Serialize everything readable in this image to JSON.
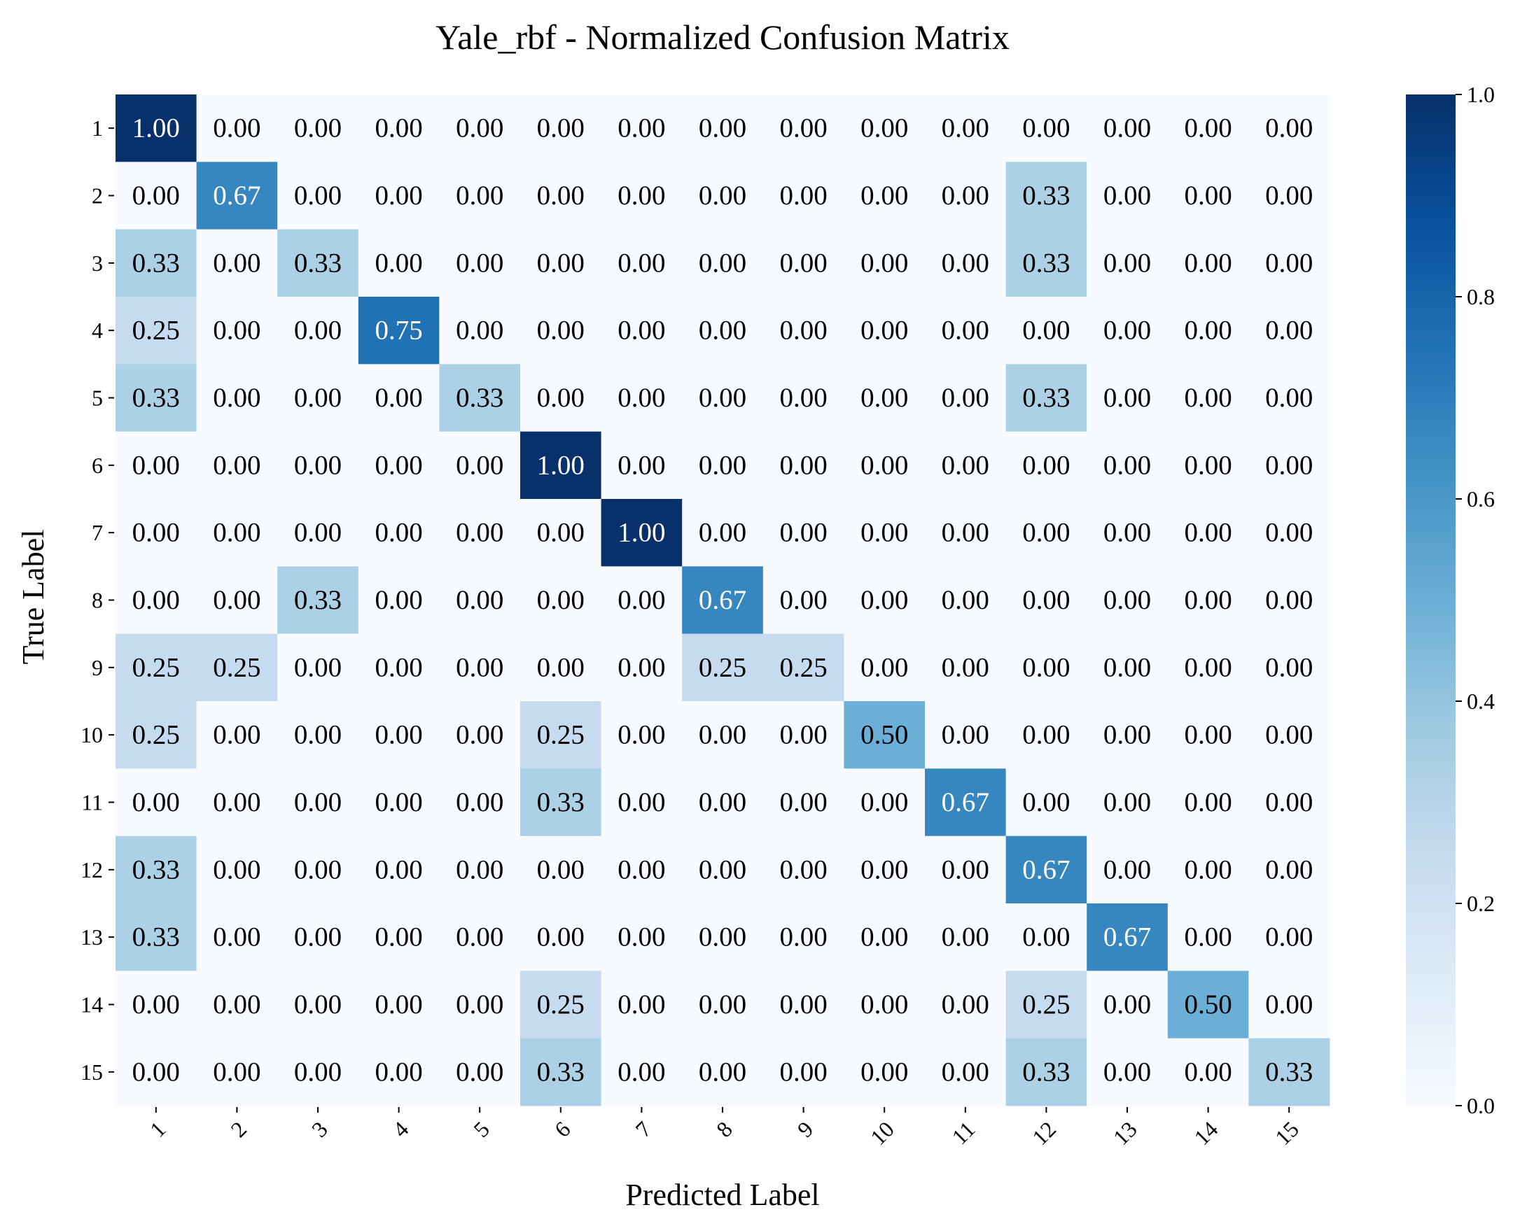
{
  "chart_data": {
    "type": "heatmap",
    "title": "Yale_rbf - Normalized Confusion Matrix",
    "xlabel": "Predicted Label",
    "ylabel": "True Label",
    "x_categories": [
      "1",
      "2",
      "3",
      "4",
      "5",
      "6",
      "7",
      "8",
      "9",
      "10",
      "11",
      "12",
      "13",
      "14",
      "15"
    ],
    "y_categories": [
      "1",
      "2",
      "3",
      "4",
      "5",
      "6",
      "7",
      "8",
      "9",
      "10",
      "11",
      "12",
      "13",
      "14",
      "15"
    ],
    "values": [
      [
        1.0,
        0.0,
        0.0,
        0.0,
        0.0,
        0.0,
        0.0,
        0.0,
        0.0,
        0.0,
        0.0,
        0.0,
        0.0,
        0.0,
        0.0
      ],
      [
        0.0,
        0.67,
        0.0,
        0.0,
        0.0,
        0.0,
        0.0,
        0.0,
        0.0,
        0.0,
        0.0,
        0.33,
        0.0,
        0.0,
        0.0
      ],
      [
        0.33,
        0.0,
        0.33,
        0.0,
        0.0,
        0.0,
        0.0,
        0.0,
        0.0,
        0.0,
        0.0,
        0.33,
        0.0,
        0.0,
        0.0
      ],
      [
        0.25,
        0.0,
        0.0,
        0.75,
        0.0,
        0.0,
        0.0,
        0.0,
        0.0,
        0.0,
        0.0,
        0.0,
        0.0,
        0.0,
        0.0
      ],
      [
        0.33,
        0.0,
        0.0,
        0.0,
        0.33,
        0.0,
        0.0,
        0.0,
        0.0,
        0.0,
        0.0,
        0.33,
        0.0,
        0.0,
        0.0
      ],
      [
        0.0,
        0.0,
        0.0,
        0.0,
        0.0,
        1.0,
        0.0,
        0.0,
        0.0,
        0.0,
        0.0,
        0.0,
        0.0,
        0.0,
        0.0
      ],
      [
        0.0,
        0.0,
        0.0,
        0.0,
        0.0,
        0.0,
        1.0,
        0.0,
        0.0,
        0.0,
        0.0,
        0.0,
        0.0,
        0.0,
        0.0
      ],
      [
        0.0,
        0.0,
        0.33,
        0.0,
        0.0,
        0.0,
        0.0,
        0.67,
        0.0,
        0.0,
        0.0,
        0.0,
        0.0,
        0.0,
        0.0
      ],
      [
        0.25,
        0.25,
        0.0,
        0.0,
        0.0,
        0.0,
        0.0,
        0.25,
        0.25,
        0.0,
        0.0,
        0.0,
        0.0,
        0.0,
        0.0
      ],
      [
        0.25,
        0.0,
        0.0,
        0.0,
        0.0,
        0.25,
        0.0,
        0.0,
        0.0,
        0.5,
        0.0,
        0.0,
        0.0,
        0.0,
        0.0
      ],
      [
        0.0,
        0.0,
        0.0,
        0.0,
        0.0,
        0.33,
        0.0,
        0.0,
        0.0,
        0.0,
        0.67,
        0.0,
        0.0,
        0.0,
        0.0
      ],
      [
        0.33,
        0.0,
        0.0,
        0.0,
        0.0,
        0.0,
        0.0,
        0.0,
        0.0,
        0.0,
        0.0,
        0.67,
        0.0,
        0.0,
        0.0
      ],
      [
        0.33,
        0.0,
        0.0,
        0.0,
        0.0,
        0.0,
        0.0,
        0.0,
        0.0,
        0.0,
        0.0,
        0.0,
        0.67,
        0.0,
        0.0
      ],
      [
        0.0,
        0.0,
        0.0,
        0.0,
        0.0,
        0.25,
        0.0,
        0.0,
        0.0,
        0.0,
        0.0,
        0.25,
        0.0,
        0.5,
        0.0
      ],
      [
        0.0,
        0.0,
        0.0,
        0.0,
        0.0,
        0.33,
        0.0,
        0.0,
        0.0,
        0.0,
        0.0,
        0.33,
        0.0,
        0.0,
        0.33
      ]
    ],
    "value_format": "0.00",
    "colormap": "Blues",
    "colormap_stops": [
      "#f7fbff",
      "#deebf7",
      "#c6dbef",
      "#9ecae1",
      "#6baed6",
      "#4292c6",
      "#2171b5",
      "#08519c",
      "#08306b"
    ],
    "vmin": 0.0,
    "vmax": 1.0,
    "colorbar_ticks": [
      "0.0",
      "0.2",
      "0.4",
      "0.6",
      "0.8",
      "1.0"
    ],
    "x_tick_rotation_deg": 45,
    "grid": false
  }
}
